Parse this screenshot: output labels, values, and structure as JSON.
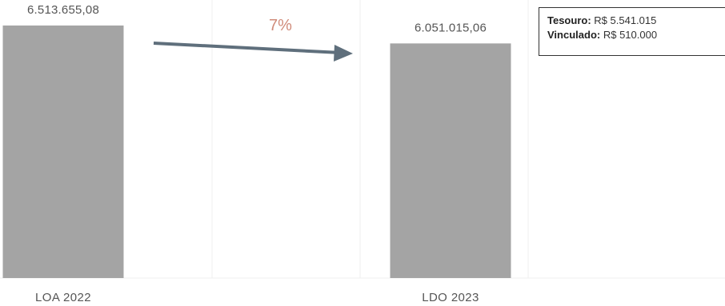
{
  "chart_data": {
    "type": "bar",
    "categories": [
      "LOA 2022",
      "LDO 2023"
    ],
    "values": [
      6513655.08,
      6051015.06
    ],
    "value_labels": [
      "6.513.655,08",
      "6.051.015,06"
    ],
    "ylim": [
      0,
      6800000
    ],
    "grid": true,
    "bar_color": "#a4a4a4",
    "annotation": {
      "change_label": "7%",
      "arrow_from": "LOA 2022",
      "arrow_to": "LDO 2023"
    },
    "info_box": [
      {
        "key": "Tesouro:",
        "value": "R$ 5.541.015"
      },
      {
        "key": "Vinculado:",
        "value": "R$ 510.000"
      }
    ]
  },
  "colors": {
    "bar": "#a4a4a4",
    "arrow": "#5f6f7c",
    "change_label": "#d08b7a"
  }
}
